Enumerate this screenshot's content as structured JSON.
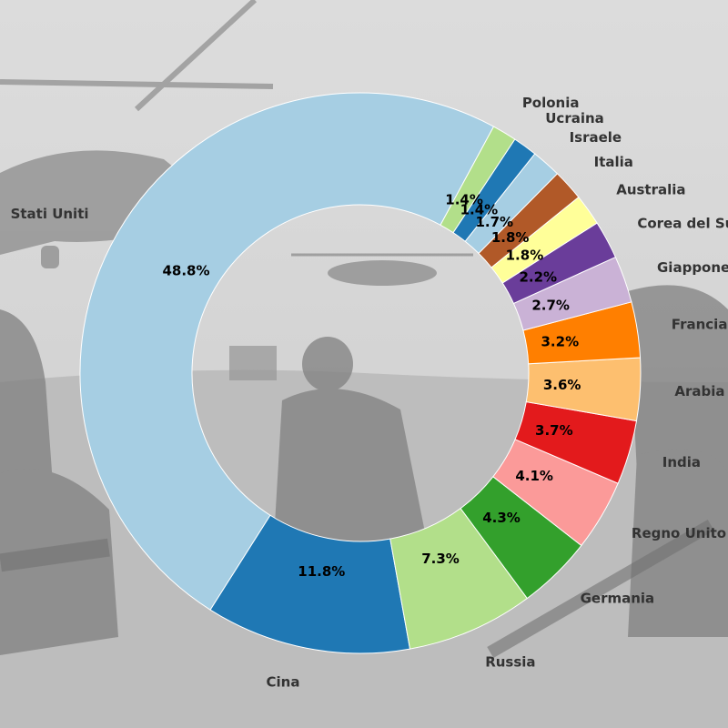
{
  "chart_data": {
    "type": "pie",
    "donut": true,
    "title": "",
    "start_angle_deg": 61.6,
    "direction": "counterclockwise",
    "categories": [
      "Stati Uniti",
      "Cina",
      "Russia",
      "Germania",
      "Regno Unito",
      "India",
      "Arabia Saudita",
      "Francia",
      "Giappone",
      "Corea del Sud",
      "Australia",
      "Italia",
      "Israele",
      "Ucraina",
      "Polonia"
    ],
    "values": [
      48.8,
      11.8,
      7.3,
      4.3,
      4.1,
      3.7,
      3.6,
      3.2,
      2.7,
      2.2,
      1.8,
      1.8,
      1.7,
      1.4,
      1.4
    ],
    "value_labels": [
      "48.8%",
      "11.8%",
      "7.3%",
      "4.3%",
      "4.1%",
      "3.7%",
      "3.6%",
      "3.2%",
      "2.7%",
      "2.2%",
      "1.8%",
      "1.8%",
      "1.7%",
      "1.4%",
      "1.4%"
    ],
    "colors": [
      "#a6cee3",
      "#1f78b4",
      "#b2df8a",
      "#33a02c",
      "#fb9a99",
      "#e31a1c",
      "#fdbf6f",
      "#ff7f00",
      "#cab2d6",
      "#6a3d9a",
      "#ffff99",
      "#b15928",
      "#a6cee3",
      "#1f78b4",
      "#b2df8a"
    ],
    "legend": "none"
  },
  "background": {
    "description_icon": "military-photo-grayscale",
    "tint": "#bdbdbd"
  }
}
